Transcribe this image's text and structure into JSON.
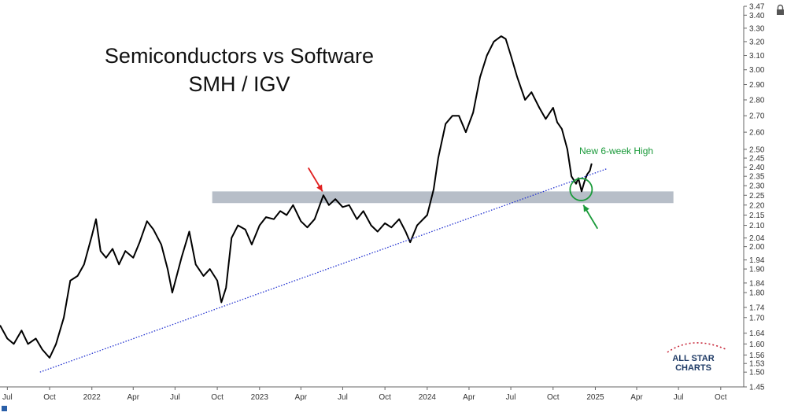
{
  "chart_data": {
    "type": "line",
    "title": "Semiconductors vs Software",
    "subtitle": "SMH / IGV",
    "y_scale": "log",
    "ylim": [
      1.45,
      3.47
    ],
    "y_ticks": [
      1.45,
      1.5,
      1.53,
      1.56,
      1.6,
      1.64,
      1.7,
      1.74,
      1.8,
      1.84,
      1.9,
      1.94,
      2.0,
      2.04,
      2.1,
      2.15,
      2.2,
      2.25,
      2.3,
      2.35,
      2.4,
      2.45,
      2.5,
      2.6,
      2.7,
      2.8,
      2.9,
      3.0,
      3.1,
      3.2,
      3.3,
      3.4,
      3.47
    ],
    "xlim": [
      "2021-06-15",
      "2025-11-20"
    ],
    "x_ticks": [
      {
        "date": "2021-07-01",
        "label": "Jul"
      },
      {
        "date": "2021-10-01",
        "label": "Oct"
      },
      {
        "date": "2022-01-01",
        "label": "2022"
      },
      {
        "date": "2022-04-01",
        "label": "Apr"
      },
      {
        "date": "2022-07-01",
        "label": "Jul"
      },
      {
        "date": "2022-10-01",
        "label": "Oct"
      },
      {
        "date": "2023-01-01",
        "label": "2023"
      },
      {
        "date": "2023-04-01",
        "label": "Apr"
      },
      {
        "date": "2023-07-01",
        "label": "Jul"
      },
      {
        "date": "2023-10-01",
        "label": "Oct"
      },
      {
        "date": "2024-01-01",
        "label": "2024"
      },
      {
        "date": "2024-04-01",
        "label": "Apr"
      },
      {
        "date": "2024-07-01",
        "label": "Jul"
      },
      {
        "date": "2024-10-01",
        "label": "Oct"
      },
      {
        "date": "2025-01-01",
        "label": "2025"
      },
      {
        "date": "2025-04-01",
        "label": "Apr"
      },
      {
        "date": "2025-07-01",
        "label": "Jul"
      },
      {
        "date": "2025-10-01",
        "label": "Oct"
      }
    ],
    "series": [
      {
        "color": "#000000",
        "points": [
          [
            "2021-06-15",
            1.67
          ],
          [
            "2021-07-01",
            1.62
          ],
          [
            "2021-07-15",
            1.6
          ],
          [
            "2021-08-01",
            1.65
          ],
          [
            "2021-08-15",
            1.6
          ],
          [
            "2021-09-01",
            1.62
          ],
          [
            "2021-09-15",
            1.58
          ],
          [
            "2021-10-01",
            1.55
          ],
          [
            "2021-10-15",
            1.6
          ],
          [
            "2021-11-01",
            1.7
          ],
          [
            "2021-11-15",
            1.85
          ],
          [
            "2021-12-01",
            1.87
          ],
          [
            "2021-12-15",
            1.92
          ],
          [
            "2022-01-01",
            2.05
          ],
          [
            "2022-01-10",
            2.13
          ],
          [
            "2022-01-20",
            1.98
          ],
          [
            "2022-02-01",
            1.95
          ],
          [
            "2022-02-15",
            1.99
          ],
          [
            "2022-03-01",
            1.92
          ],
          [
            "2022-03-15",
            1.98
          ],
          [
            "2022-04-01",
            1.95
          ],
          [
            "2022-04-15",
            2.02
          ],
          [
            "2022-05-01",
            2.12
          ],
          [
            "2022-05-15",
            2.08
          ],
          [
            "2022-06-01",
            2.01
          ],
          [
            "2022-06-15",
            1.9
          ],
          [
            "2022-06-25",
            1.8
          ],
          [
            "2022-07-15",
            1.95
          ],
          [
            "2022-08-01",
            2.07
          ],
          [
            "2022-08-15",
            1.92
          ],
          [
            "2022-09-01",
            1.87
          ],
          [
            "2022-09-15",
            1.9
          ],
          [
            "2022-10-01",
            1.85
          ],
          [
            "2022-10-10",
            1.76
          ],
          [
            "2022-10-20",
            1.82
          ],
          [
            "2022-11-01",
            2.04
          ],
          [
            "2022-11-15",
            2.1
          ],
          [
            "2022-12-01",
            2.08
          ],
          [
            "2022-12-15",
            2.01
          ],
          [
            "2023-01-01",
            2.1
          ],
          [
            "2023-01-15",
            2.14
          ],
          [
            "2023-02-01",
            2.13
          ],
          [
            "2023-02-15",
            2.17
          ],
          [
            "2023-03-01",
            2.15
          ],
          [
            "2023-03-15",
            2.2
          ],
          [
            "2023-04-01",
            2.12
          ],
          [
            "2023-04-15",
            2.09
          ],
          [
            "2023-05-01",
            2.13
          ],
          [
            "2023-05-20",
            2.25
          ],
          [
            "2023-06-01",
            2.2
          ],
          [
            "2023-06-15",
            2.23
          ],
          [
            "2023-07-01",
            2.19
          ],
          [
            "2023-07-15",
            2.2
          ],
          [
            "2023-08-01",
            2.13
          ],
          [
            "2023-08-15",
            2.17
          ],
          [
            "2023-09-01",
            2.1
          ],
          [
            "2023-09-15",
            2.07
          ],
          [
            "2023-10-01",
            2.11
          ],
          [
            "2023-10-15",
            2.09
          ],
          [
            "2023-11-01",
            2.13
          ],
          [
            "2023-11-15",
            2.07
          ],
          [
            "2023-11-25",
            2.02
          ],
          [
            "2023-12-10",
            2.1
          ],
          [
            "2024-01-01",
            2.15
          ],
          [
            "2024-01-15",
            2.28
          ],
          [
            "2024-01-25",
            2.45
          ],
          [
            "2024-02-10",
            2.65
          ],
          [
            "2024-02-25",
            2.7
          ],
          [
            "2024-03-10",
            2.7
          ],
          [
            "2024-03-25",
            2.6
          ],
          [
            "2024-04-10",
            2.72
          ],
          [
            "2024-04-25",
            2.95
          ],
          [
            "2024-05-10",
            3.1
          ],
          [
            "2024-05-25",
            3.2
          ],
          [
            "2024-06-10",
            3.24
          ],
          [
            "2024-06-20",
            3.22
          ],
          [
            "2024-07-01",
            3.1
          ],
          [
            "2024-07-15",
            2.95
          ],
          [
            "2024-08-01",
            2.8
          ],
          [
            "2024-08-15",
            2.85
          ],
          [
            "2024-09-01",
            2.75
          ],
          [
            "2024-09-15",
            2.68
          ],
          [
            "2024-10-01",
            2.75
          ],
          [
            "2024-10-10",
            2.66
          ],
          [
            "2024-10-20",
            2.62
          ],
          [
            "2024-11-01",
            2.5
          ],
          [
            "2024-11-10",
            2.35
          ],
          [
            "2024-11-20",
            2.31
          ],
          [
            "2024-11-25",
            2.34
          ],
          [
            "2024-12-02",
            2.27
          ],
          [
            "2024-12-08",
            2.32
          ],
          [
            "2024-12-14",
            2.36
          ],
          [
            "2024-12-20",
            2.38
          ],
          [
            "2024-12-24",
            2.42
          ]
        ]
      }
    ],
    "resistance_band": [
      2.21,
      2.27
    ],
    "trendline": {
      "color": "#2030d0",
      "style": "dotted",
      "points": [
        [
          "2021-09-10",
          1.5
        ],
        [
          "2025-01-25",
          2.39
        ]
      ]
    },
    "annotations": [
      {
        "type": "arrow",
        "color": "#e02020",
        "target": [
          "2023-05-18",
          2.27
        ]
      },
      {
        "type": "circle",
        "color": "#1a9a3a",
        "center": [
          "2024-12-01",
          2.28
        ]
      },
      {
        "type": "arrow",
        "color": "#1a9a3a",
        "target": [
          "2024-12-06",
          2.2
        ]
      },
      {
        "type": "text",
        "label": "New 6-week High",
        "color": "#1a9a3a",
        "anchor": [
          "2024-12-10",
          2.5
        ]
      }
    ],
    "watermark": {
      "line1": "ALL STAR",
      "line2": "CHARTS"
    },
    "grid": false
  }
}
